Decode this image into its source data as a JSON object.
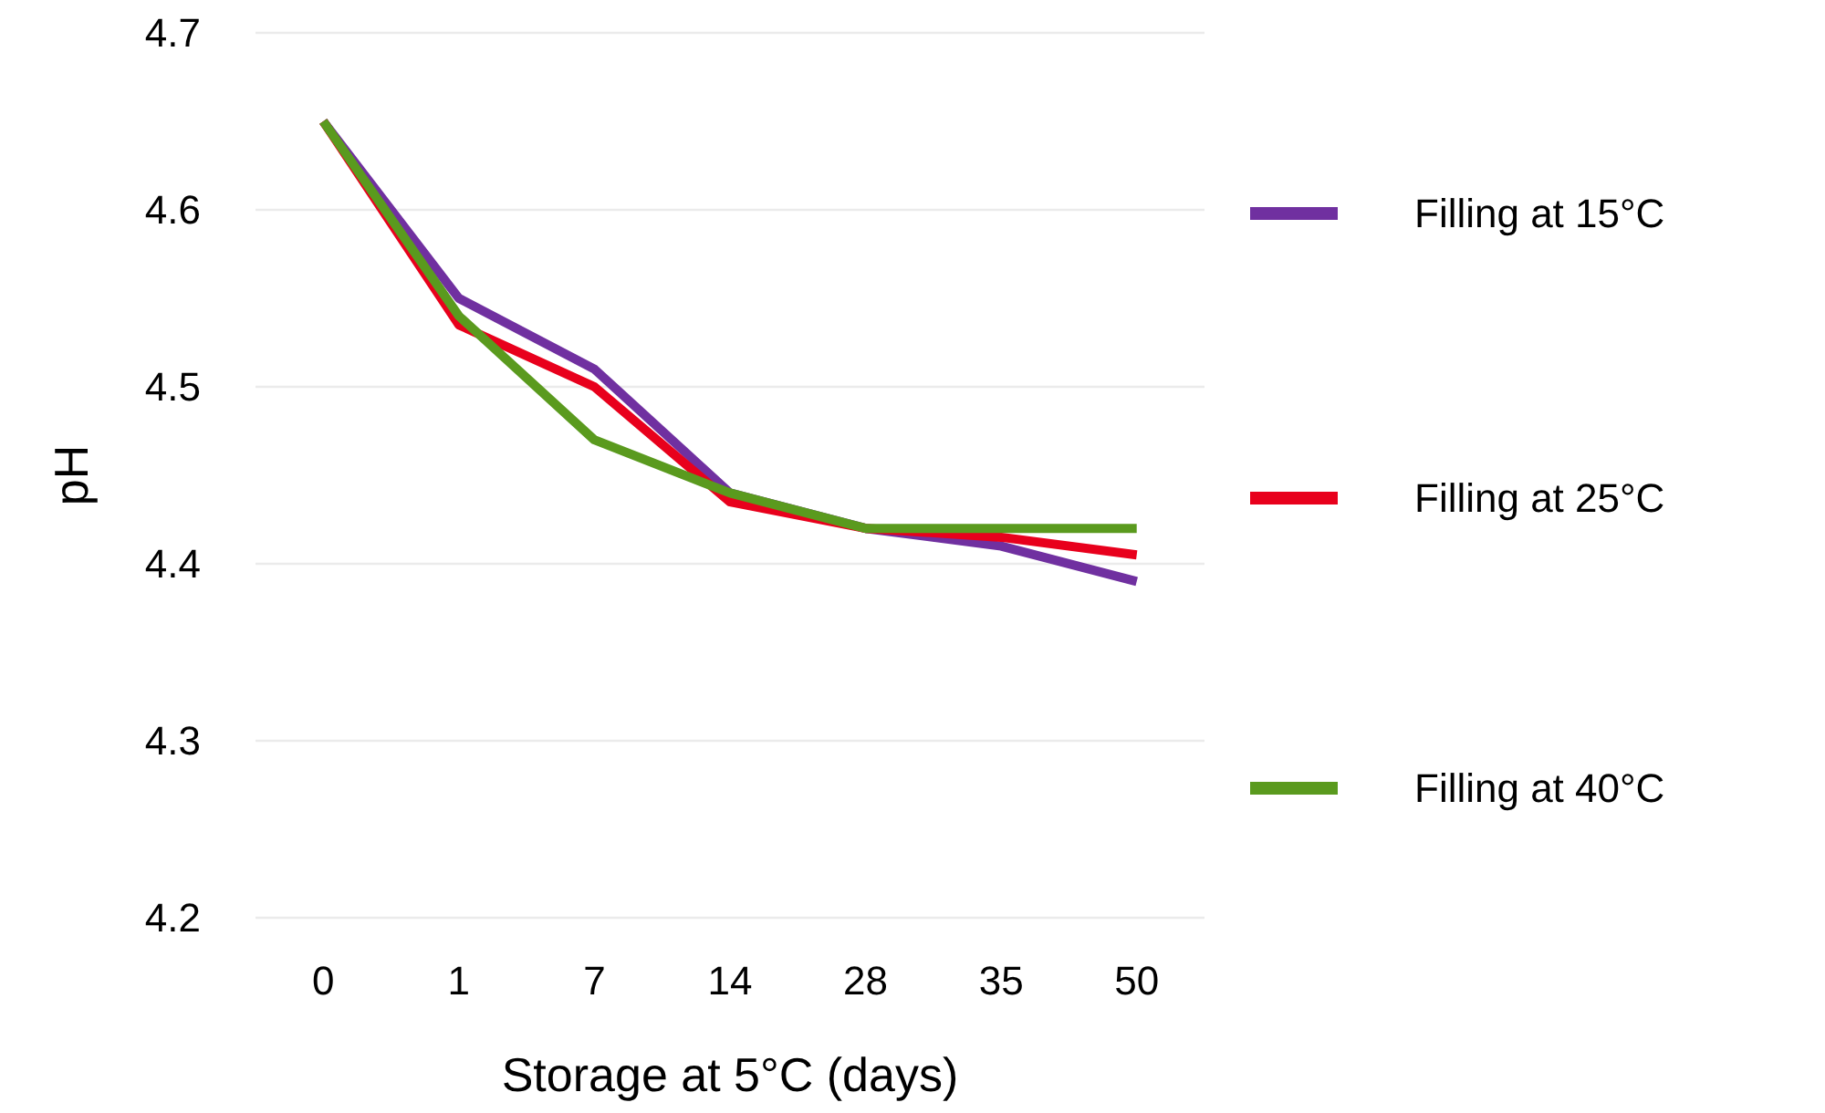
{
  "chart_data": {
    "type": "line",
    "xlabel": "Storage at 5°C (days)",
    "ylabel": "pH",
    "categories": [
      "0",
      "1",
      "7",
      "14",
      "28",
      "35",
      "50"
    ],
    "series": [
      {
        "name": "Filling at 15°C",
        "color": "#7030a0",
        "values": [
          4.65,
          4.55,
          4.51,
          4.44,
          4.42,
          4.41,
          4.39
        ]
      },
      {
        "name": "Filling at 25°C",
        "color": "#e8001c",
        "values": [
          4.65,
          4.535,
          4.5,
          4.435,
          4.42,
          4.415,
          4.405
        ]
      },
      {
        "name": "Filling at 40°C",
        "color": "#5a9a1e",
        "values": [
          4.65,
          4.54,
          4.47,
          4.44,
          4.42,
          4.42,
          4.42
        ]
      }
    ],
    "ylim": [
      4.2,
      4.7
    ],
    "yticks": [
      4.2,
      4.3,
      4.4,
      4.5,
      4.6,
      4.7
    ],
    "grid": "y",
    "legend": "right",
    "marker": "none",
    "line_style": "solid"
  }
}
